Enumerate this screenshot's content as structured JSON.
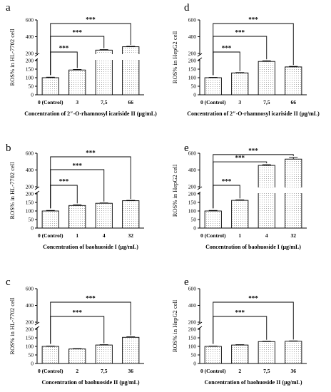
{
  "chart_data": [
    {
      "panel": "a",
      "type": "bar",
      "ylabel": "ROS% in HL-7702 cell",
      "xlabel": "Concentration of 2″-O-rhamnosyl icariside II (μg/mL)",
      "categories": [
        "0 (Control)",
        "3",
        "7.5",
        "66"
      ],
      "category_labels": [
        "0 (Control)",
        "3",
        "7,5",
        "66"
      ],
      "values": [
        100,
        145,
        240,
        280
      ],
      "errors": [
        3,
        3,
        6,
        5
      ],
      "axis_break": true,
      "ylim_lower": [
        0,
        200
      ],
      "yticks_lower": [
        "0",
        "50",
        "100",
        "150",
        "200"
      ],
      "ylim_upper": [
        200,
        600
      ],
      "yticks_upper": [
        "200",
        "400",
        "600"
      ],
      "significance": [
        {
          "from": 0,
          "to": 1,
          "label": "***"
        },
        {
          "from": 0,
          "to": 2,
          "label": "***"
        },
        {
          "from": 0,
          "to": 3,
          "label": "***"
        }
      ]
    },
    {
      "panel": "d",
      "type": "bar",
      "ylabel": "ROS% in HepG2 cell",
      "xlabel": "Concentration of 2″-O-rhamnosyl icariside II (μg/mL)",
      "categories": [
        "0 (Control)",
        "3",
        "7.5",
        "66"
      ],
      "category_labels": [
        "0 (Control)",
        "3",
        "7,5",
        "66"
      ],
      "values": [
        100,
        128,
        195,
        163
      ],
      "errors": [
        2,
        2,
        4,
        3
      ],
      "axis_break": true,
      "ylim_lower": [
        0,
        200
      ],
      "yticks_lower": [
        "0",
        "50",
        "100",
        "150",
        "200"
      ],
      "ylim_upper": [
        200,
        600
      ],
      "yticks_upper": [
        "200",
        "400",
        "600"
      ],
      "significance": [
        {
          "from": 0,
          "to": 1,
          "label": "***"
        },
        {
          "from": 0,
          "to": 2,
          "label": "***"
        },
        {
          "from": 0,
          "to": 3,
          "label": "***"
        }
      ]
    },
    {
      "panel": "b",
      "type": "bar",
      "ylabel": "ROS% in HL-7702 cell",
      "xlabel": "Concentration of baohuoside I (μg/mL)",
      "categories": [
        "0 (Control)",
        "1",
        "4",
        "32"
      ],
      "category_labels": [
        "0 (Control)",
        "1",
        "4",
        "32"
      ],
      "values": [
        100,
        132,
        145,
        160
      ],
      "errors": [
        3,
        4,
        2,
        2
      ],
      "axis_break": true,
      "ylim_lower": [
        0,
        200
      ],
      "yticks_lower": [
        "0",
        "50",
        "100",
        "150",
        "200"
      ],
      "ylim_upper": [
        200,
        600
      ],
      "yticks_upper": [
        "200",
        "400",
        "600"
      ],
      "significance": [
        {
          "from": 0,
          "to": 1,
          "label": "***"
        },
        {
          "from": 0,
          "to": 2,
          "label": "***"
        },
        {
          "from": 0,
          "to": 3,
          "label": "***"
        }
      ]
    },
    {
      "panel": "e",
      "type": "bar",
      "ylabel": "ROS% in HepG2 cell",
      "xlabel": "Concentration of baohuoside I (μg/mL)",
      "categories": [
        "0 (Control)",
        "1",
        "4",
        "32"
      ],
      "category_labels": [
        "0 (Control)",
        "1",
        "4",
        "32"
      ],
      "values": [
        100,
        162,
        455,
        530
      ],
      "errors": [
        3,
        3,
        8,
        20
      ],
      "axis_break": true,
      "ylim_lower": [
        0,
        200
      ],
      "yticks_lower": [
        "0",
        "50",
        "100",
        "150",
        "200"
      ],
      "ylim_upper": [
        200,
        600
      ],
      "yticks_upper": [
        "200",
        "400",
        "600"
      ],
      "significance": [
        {
          "from": 0,
          "to": 1,
          "label": "***"
        },
        {
          "from": 0,
          "to": 2,
          "label": "***"
        },
        {
          "from": 0,
          "to": 3,
          "label": "***"
        }
      ]
    },
    {
      "panel": "c",
      "type": "bar",
      "ylabel": "ROS% in HL-7702 cell",
      "xlabel": "Concentration of baohuoside II (μg/mL)",
      "categories": [
        "0 (Control)",
        "2",
        "7.5",
        "36"
      ],
      "category_labels": [
        "0 (Control)",
        "2",
        "7,5",
        "36"
      ],
      "values": [
        100,
        85,
        108,
        153
      ],
      "errors": [
        2,
        2,
        2,
        3
      ],
      "axis_break": true,
      "ylim_lower": [
        0,
        200
      ],
      "yticks_lower": [
        "0",
        "50",
        "100",
        "150",
        "200"
      ],
      "ylim_upper": [
        200,
        600
      ],
      "yticks_upper": [
        "200",
        "400",
        "600"
      ],
      "significance": [
        {
          "from": 0,
          "to": 2,
          "label": "***"
        },
        {
          "from": 0,
          "to": 3,
          "label": "***"
        }
      ]
    },
    {
      "panel": "e",
      "type": "bar",
      "ylabel": "ROS% in HepG2 cell",
      "xlabel": "Concentration of baohuoside II (μg/mL)",
      "categories": [
        "0 (Control)",
        "2",
        "7.5",
        "36"
      ],
      "category_labels": [
        "0 (Control)",
        "2",
        "7,5",
        "36"
      ],
      "values": [
        100,
        108,
        128,
        130
      ],
      "errors": [
        2,
        2,
        2,
        2
      ],
      "axis_break": true,
      "ylim_lower": [
        0,
        200
      ],
      "yticks_lower": [
        "0",
        "50",
        "100",
        "150",
        "200"
      ],
      "ylim_upper": [
        200,
        600
      ],
      "yticks_upper": [
        "200",
        "400",
        "600"
      ],
      "significance": [
        {
          "from": 0,
          "to": 2,
          "label": "***"
        },
        {
          "from": 0,
          "to": 3,
          "label": "***"
        }
      ]
    }
  ]
}
